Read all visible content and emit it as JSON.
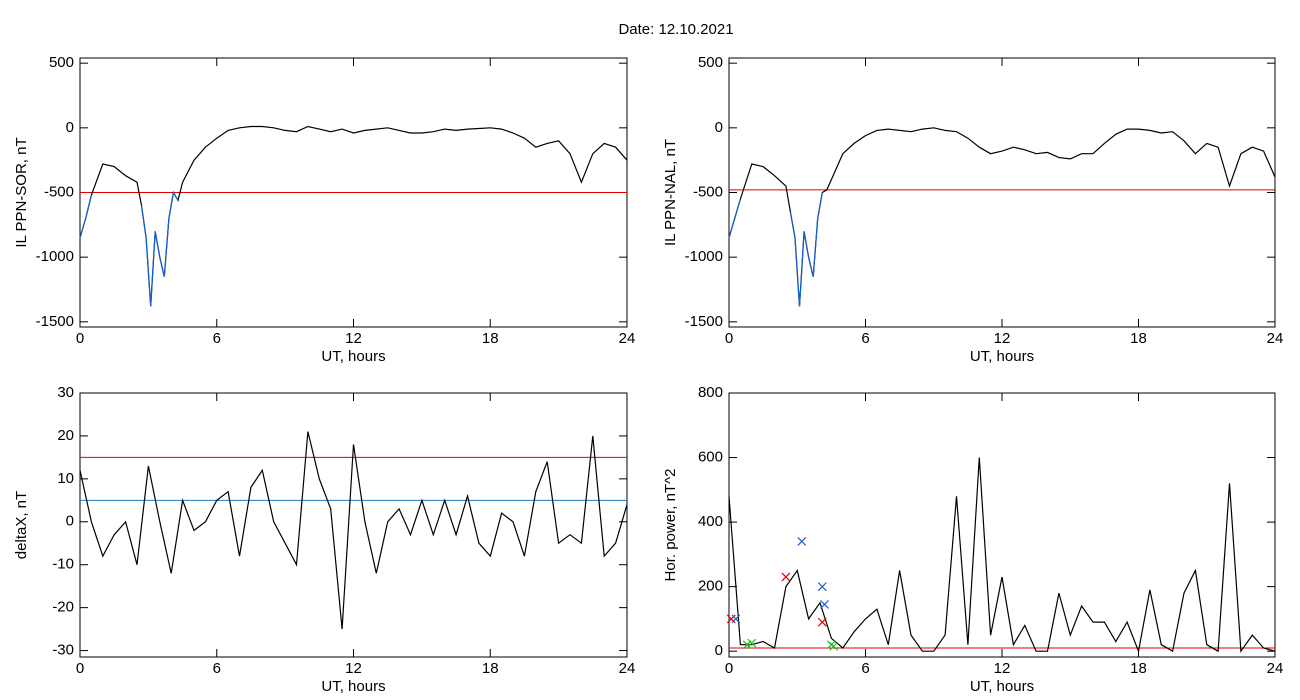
{
  "title": "Date:  12.10.2021",
  "chart_data": [
    {
      "type": "line",
      "ylabel": "IL PPN-SOR, nT",
      "xlabel": "UT, hours",
      "xlim": [
        0,
        24
      ],
      "xticks": [
        0,
        6,
        12,
        18,
        24
      ],
      "ylim": [
        -1540,
        540
      ],
      "yticks": [
        -1500,
        -1000,
        -500,
        0,
        500
      ],
      "x": [
        0,
        0.25,
        0.5,
        1,
        1.5,
        2,
        2.5,
        2.7,
        2.9,
        3.1,
        3.3,
        3.5,
        3.7,
        3.9,
        4.1,
        4.3,
        4.5,
        5,
        5.5,
        6,
        6.5,
        7,
        7.5,
        8,
        8.5,
        9,
        9.5,
        10,
        10.5,
        11,
        11.5,
        12,
        12.5,
        13,
        13.5,
        14,
        14.5,
        15,
        15.5,
        16,
        16.5,
        17,
        17.5,
        18,
        18.5,
        19,
        19.5,
        20,
        20.5,
        21,
        21.5,
        22,
        22.5,
        23,
        23.5,
        24
      ],
      "series": [
        {
          "color": "#000000",
          "values": [
            -850,
            -700,
            -520,
            -280,
            -300,
            -370,
            -420,
            -600,
            -850,
            -1380,
            -800,
            -1000,
            -1150,
            -700,
            -500,
            -560,
            -420,
            -250,
            -150,
            -80,
            -20,
            0,
            10,
            10,
            0,
            -20,
            -30,
            10,
            -10,
            -30,
            -10,
            -40,
            -20,
            -10,
            0,
            -20,
            -40,
            -40,
            -30,
            -10,
            -20,
            -10,
            -5,
            0,
            -10,
            -40,
            -80,
            -150,
            -120,
            -100,
            -200,
            -420,
            -200,
            -120,
            -150,
            -250
          ]
        },
        {
          "color": "#1560d0",
          "values": [
            -850,
            -700,
            -520,
            null,
            null,
            null,
            null,
            -600,
            -850,
            -1380,
            -800,
            -1000,
            -1150,
            -700,
            -500,
            -560,
            null,
            null,
            null,
            null,
            null,
            null,
            null,
            null,
            null,
            null,
            null,
            null,
            null,
            null,
            null,
            null,
            null,
            null,
            null,
            null,
            null,
            null,
            null,
            null,
            null,
            null,
            null,
            null,
            null,
            null,
            null,
            null,
            null,
            null,
            null,
            null,
            null,
            null,
            null,
            null
          ]
        }
      ],
      "hlines": [
        {
          "value": -500,
          "color": "#e00000"
        }
      ]
    },
    {
      "type": "line",
      "ylabel": "IL PPN-NAL, nT",
      "xlabel": "UT, hours",
      "xlim": [
        0,
        24
      ],
      "xticks": [
        0,
        6,
        12,
        18,
        24
      ],
      "ylim": [
        -1540,
        540
      ],
      "yticks": [
        -1500,
        -1000,
        -500,
        0,
        500
      ],
      "x": [
        0,
        0.25,
        0.5,
        1,
        1.5,
        2,
        2.5,
        2.7,
        2.9,
        3.1,
        3.3,
        3.5,
        3.7,
        3.9,
        4.1,
        4.3,
        4.5,
        5,
        5.5,
        6,
        6.5,
        7,
        7.5,
        8,
        8.5,
        9,
        9.5,
        10,
        10.5,
        11,
        11.5,
        12,
        12.5,
        13,
        13.5,
        14,
        14.5,
        15,
        15.5,
        16,
        16.5,
        17,
        17.5,
        18,
        18.5,
        19,
        19.5,
        20,
        20.5,
        21,
        21.5,
        22,
        22.5,
        23,
        23.5,
        24
      ],
      "series": [
        {
          "color": "#000000",
          "values": [
            -850,
            -700,
            -550,
            -280,
            -300,
            -370,
            -450,
            -650,
            -850,
            -1380,
            -800,
            -1000,
            -1150,
            -700,
            -500,
            -480,
            -400,
            -200,
            -120,
            -60,
            -20,
            -10,
            -20,
            -30,
            -10,
            0,
            -20,
            -30,
            -80,
            -150,
            -200,
            -180,
            -150,
            -170,
            -200,
            -190,
            -230,
            -240,
            -200,
            -200,
            -120,
            -50,
            -10,
            -10,
            -20,
            -40,
            -30,
            -100,
            -200,
            -120,
            -150,
            -450,
            -200,
            -150,
            -180,
            -380
          ]
        },
        {
          "color": "#1560d0",
          "values": [
            -850,
            -700,
            -550,
            null,
            null,
            null,
            null,
            -650,
            -850,
            -1380,
            -800,
            -1000,
            -1150,
            -700,
            -500,
            null,
            null,
            null,
            null,
            null,
            null,
            null,
            null,
            null,
            null,
            null,
            null,
            null,
            null,
            null,
            null,
            null,
            null,
            null,
            null,
            null,
            null,
            null,
            null,
            null,
            null,
            null,
            null,
            null,
            null,
            null,
            null,
            null,
            null,
            null,
            null,
            null,
            null,
            null,
            null,
            null
          ]
        }
      ],
      "hlines": [
        {
          "value": -480,
          "color": "#e00000"
        }
      ]
    },
    {
      "type": "line",
      "ylabel": "deltaX, nT",
      "xlabel": "UT, hours",
      "xlim": [
        0,
        24
      ],
      "xticks": [
        0,
        6,
        12,
        18,
        24
      ],
      "ylim": [
        -31.5,
        30
      ],
      "yticks": [
        -30,
        -20,
        -10,
        0,
        10,
        20,
        30
      ],
      "x": [
        0,
        0.5,
        1,
        1.5,
        2,
        2.5,
        3,
        3.5,
        4,
        4.5,
        5,
        5.5,
        6,
        6.5,
        7,
        7.5,
        8,
        8.5,
        9,
        9.5,
        10,
        10.5,
        11,
        11.5,
        12,
        12.5,
        13,
        13.5,
        14,
        14.5,
        15,
        15.5,
        16,
        16.5,
        17,
        17.5,
        18,
        18.5,
        19,
        19.5,
        20,
        20.5,
        21,
        21.5,
        22,
        22.5,
        23,
        23.5,
        24
      ],
      "series": [
        {
          "color": "#000000",
          "values": [
            12,
            0,
            -8,
            -3,
            0,
            -10,
            13,
            0,
            -12,
            5,
            -2,
            0,
            5,
            7,
            -8,
            8,
            12,
            0,
            -5,
            -10,
            21,
            10,
            3,
            -25,
            18,
            0,
            -12,
            0,
            3,
            -3,
            5,
            -3,
            5,
            -3,
            6,
            -5,
            -8,
            2,
            0,
            -8,
            7,
            14,
            -5,
            -3,
            -5,
            20,
            -8,
            -5,
            4
          ]
        }
      ],
      "hlines": [
        {
          "value": 15,
          "color": "#e00000"
        },
        {
          "value": 5,
          "color": "#1f7ac0"
        }
      ]
    },
    {
      "type": "line",
      "ylabel": "Hor. power, nT^2",
      "xlabel": "UT, hours",
      "xlim": [
        0,
        24
      ],
      "xticks": [
        0,
        6,
        12,
        18,
        24
      ],
      "ylim": [
        -18,
        800
      ],
      "yticks": [
        0,
        200,
        400,
        600,
        800
      ],
      "x": [
        0,
        0.5,
        1,
        1.5,
        2,
        2.5,
        3,
        3.5,
        4,
        4.5,
        5,
        5.5,
        6,
        6.5,
        7,
        7.5,
        8,
        8.5,
        9,
        9.5,
        10,
        10.5,
        11,
        11.5,
        12,
        12.5,
        13,
        13.5,
        14,
        14.5,
        15,
        15.5,
        16,
        16.5,
        17,
        17.5,
        18,
        18.5,
        19,
        19.5,
        20,
        20.5,
        21,
        21.5,
        22,
        22.5,
        23,
        23.5,
        24
      ],
      "series": [
        {
          "color": "#000000",
          "values": [
            480,
            20,
            20,
            30,
            10,
            200,
            250,
            100,
            150,
            40,
            10,
            60,
            100,
            130,
            20,
            250,
            50,
            0,
            0,
            50,
            480,
            20,
            600,
            50,
            230,
            20,
            80,
            0,
            0,
            180,
            50,
            140,
            90,
            90,
            30,
            90,
            0,
            190,
            20,
            0,
            180,
            250,
            20,
            0,
            520,
            0,
            50,
            10,
            0
          ]
        }
      ],
      "markers": [
        {
          "color": "#e00000",
          "x": [
            0.1,
            2.5,
            4.1
          ],
          "values": [
            100,
            230,
            90
          ]
        },
        {
          "color": "#1f60d0",
          "x": [
            0.3,
            3.2,
            4.1,
            4.2
          ],
          "values": [
            100,
            340,
            200,
            145
          ]
        },
        {
          "color": "#20c020",
          "x": [
            0.8,
            1.0,
            4.5,
            4.6
          ],
          "values": [
            20,
            25,
            20,
            15
          ]
        }
      ],
      "hlines": [
        {
          "value": 10,
          "color": "#e00000"
        }
      ]
    }
  ]
}
